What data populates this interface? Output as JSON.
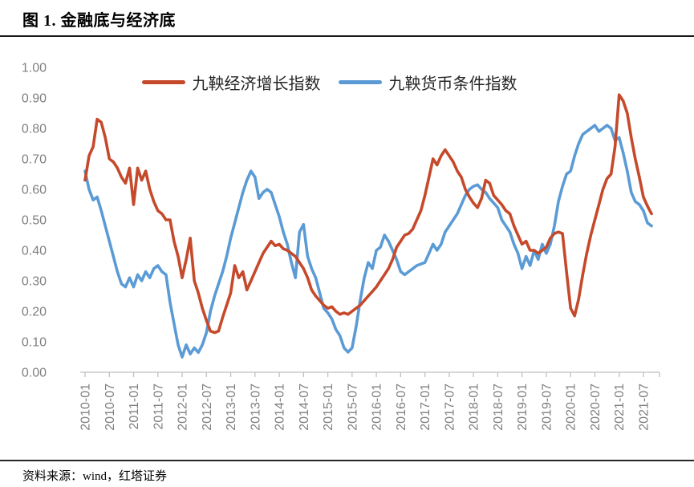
{
  "header": {
    "title": "图 1. 金融底与经济底"
  },
  "source": {
    "text": "资料来源：wind，红塔证券"
  },
  "legend": [
    {
      "label": "九鞅经济增长指数",
      "color": "#C5492B"
    },
    {
      "label": "九鞅货币条件指数",
      "color": "#5B9BD5"
    }
  ],
  "chart_data": {
    "type": "line",
    "title": "图 1. 金融底与经济底",
    "xlabel": "",
    "ylabel": "",
    "ylim": [
      0,
      1
    ],
    "grid": false,
    "legend_position": "top-center",
    "axis_color": "#bfbfbf",
    "tick_label_color": "#7f7f7f",
    "x_start": "2010-01",
    "x_frequency": "monthly",
    "x_tick_labels": [
      "2010-01",
      "2010-07",
      "2011-01",
      "2011-07",
      "2012-01",
      "2012-07",
      "2013-01",
      "2013-07",
      "2014-01",
      "2014-07",
      "2015-01",
      "2015-07",
      "2016-01",
      "2016-07",
      "2017-01",
      "2017-07",
      "2018-01",
      "2018-07",
      "2019-01",
      "2019-07",
      "2020-01",
      "2020-07",
      "2021-01",
      "2021-07"
    ],
    "y_ticks": [
      "0.00",
      "0.10",
      "0.20",
      "0.30",
      "0.40",
      "0.50",
      "0.60",
      "0.70",
      "0.80",
      "0.90",
      "1.00"
    ],
    "series": [
      {
        "name": "九鞅经济增长指数",
        "color": "#C5492B",
        "values": [
          0.63,
          0.71,
          0.74,
          0.83,
          0.82,
          0.77,
          0.7,
          0.69,
          0.67,
          0.64,
          0.62,
          0.67,
          0.55,
          0.67,
          0.63,
          0.66,
          0.6,
          0.56,
          0.53,
          0.52,
          0.5,
          0.5,
          0.43,
          0.38,
          0.31,
          0.37,
          0.44,
          0.3,
          0.26,
          0.21,
          0.17,
          0.135,
          0.13,
          0.135,
          0.18,
          0.22,
          0.26,
          0.35,
          0.31,
          0.33,
          0.27,
          0.3,
          0.33,
          0.36,
          0.39,
          0.41,
          0.43,
          0.415,
          0.42,
          0.405,
          0.4,
          0.39,
          0.38,
          0.36,
          0.34,
          0.31,
          0.27,
          0.25,
          0.235,
          0.22,
          0.21,
          0.215,
          0.2,
          0.19,
          0.195,
          0.19,
          0.2,
          0.21,
          0.22,
          0.235,
          0.25,
          0.265,
          0.28,
          0.3,
          0.32,
          0.34,
          0.37,
          0.41,
          0.43,
          0.45,
          0.455,
          0.47,
          0.5,
          0.53,
          0.58,
          0.64,
          0.7,
          0.68,
          0.71,
          0.73,
          0.71,
          0.69,
          0.66,
          0.64,
          0.6,
          0.575,
          0.555,
          0.54,
          0.57,
          0.63,
          0.62,
          0.58,
          0.565,
          0.55,
          0.53,
          0.52,
          0.48,
          0.45,
          0.42,
          0.43,
          0.4,
          0.4,
          0.39,
          0.4,
          0.41,
          0.44,
          0.455,
          0.46,
          0.455,
          0.33,
          0.21,
          0.185,
          0.24,
          0.32,
          0.39,
          0.45,
          0.5,
          0.55,
          0.6,
          0.635,
          0.65,
          0.74,
          0.91,
          0.89,
          0.85,
          0.77,
          0.7,
          0.64,
          0.575,
          0.545,
          0.52
        ]
      },
      {
        "name": "九鞅货币条件指数",
        "color": "#5B9BD5",
        "values": [
          0.66,
          0.6,
          0.565,
          0.575,
          0.53,
          0.48,
          0.43,
          0.38,
          0.33,
          0.29,
          0.28,
          0.31,
          0.28,
          0.32,
          0.3,
          0.33,
          0.31,
          0.34,
          0.35,
          0.33,
          0.32,
          0.23,
          0.16,
          0.09,
          0.05,
          0.09,
          0.06,
          0.08,
          0.065,
          0.09,
          0.13,
          0.2,
          0.25,
          0.29,
          0.33,
          0.38,
          0.44,
          0.49,
          0.54,
          0.59,
          0.63,
          0.66,
          0.64,
          0.57,
          0.59,
          0.6,
          0.59,
          0.55,
          0.51,
          0.46,
          0.42,
          0.36,
          0.31,
          0.46,
          0.485,
          0.38,
          0.34,
          0.31,
          0.26,
          0.21,
          0.195,
          0.175,
          0.14,
          0.12,
          0.08,
          0.066,
          0.08,
          0.15,
          0.235,
          0.31,
          0.36,
          0.34,
          0.4,
          0.41,
          0.45,
          0.43,
          0.4,
          0.37,
          0.33,
          0.32,
          0.33,
          0.34,
          0.35,
          0.355,
          0.36,
          0.39,
          0.42,
          0.4,
          0.42,
          0.46,
          0.48,
          0.5,
          0.52,
          0.55,
          0.58,
          0.6,
          0.61,
          0.615,
          0.6,
          0.59,
          0.57,
          0.555,
          0.54,
          0.5,
          0.48,
          0.46,
          0.42,
          0.39,
          0.34,
          0.38,
          0.35,
          0.4,
          0.37,
          0.42,
          0.39,
          0.42,
          0.48,
          0.56,
          0.61,
          0.65,
          0.66,
          0.71,
          0.75,
          0.78,
          0.79,
          0.8,
          0.81,
          0.79,
          0.8,
          0.81,
          0.8,
          0.76,
          0.77,
          0.72,
          0.66,
          0.59,
          0.56,
          0.55,
          0.53,
          0.49,
          0.48
        ]
      }
    ]
  }
}
